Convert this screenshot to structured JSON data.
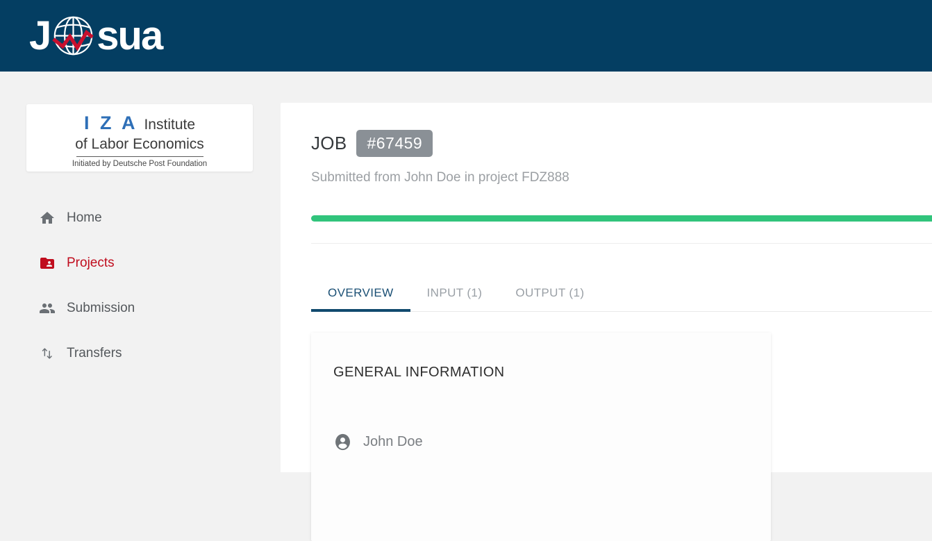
{
  "header": {
    "brand": {
      "prefix": "J",
      "suffix": "sua",
      "globe_icon": "globe-chart-icon"
    }
  },
  "sidebar": {
    "logo": {
      "acronym": "I Z A",
      "institute": "Institute",
      "name_line2": "of Labor Economics",
      "tagline": "Initiated by Deutsche Post Foundation"
    },
    "items": [
      {
        "label": "Home",
        "icon": "home-icon",
        "active": false
      },
      {
        "label": "Projects",
        "icon": "folder-shared-icon",
        "active": true
      },
      {
        "label": "Submission",
        "icon": "group-icon",
        "active": false
      },
      {
        "label": "Transfers",
        "icon": "swap-vertical-icon",
        "active": false
      }
    ]
  },
  "job": {
    "title": "JOB",
    "number_badge": "#67459",
    "subtitle": "Submitted from John Doe in project FDZ888",
    "progress_percent": 100
  },
  "tabs": [
    {
      "label": "OVERVIEW",
      "active": true
    },
    {
      "label": "INPUT (1)",
      "active": false
    },
    {
      "label": "OUTPUT (1)",
      "active": false
    }
  ],
  "overview": {
    "general_info": {
      "heading": "GENERAL INFORMATION",
      "submitter": "John Doe",
      "submitter_icon": "person-icon"
    }
  },
  "colors": {
    "navy": "#043e62",
    "green": "#31c47c",
    "red": "#c00d1e",
    "badge-gray": "#8a9096",
    "iza-blue": "#2e6fb7",
    "tab-active": "#1a4f74",
    "tab-underline": "#114a6e"
  }
}
